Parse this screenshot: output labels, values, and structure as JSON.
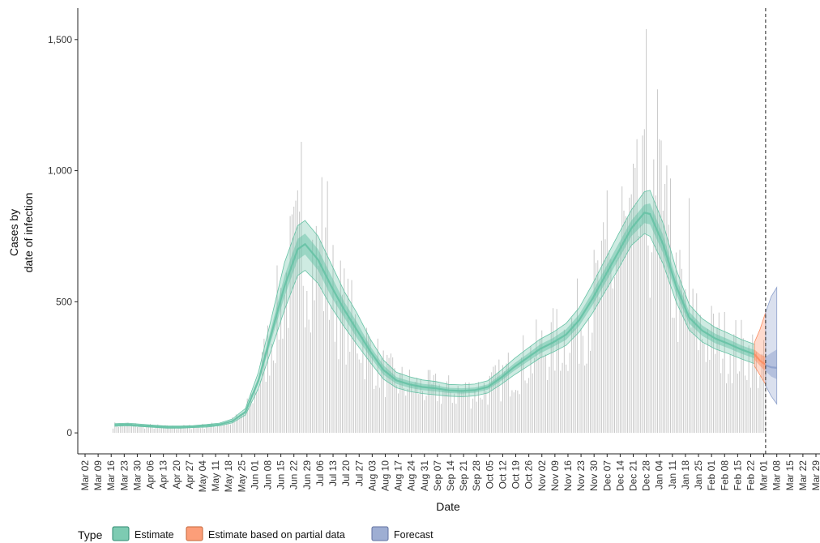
{
  "chart_data": {
    "type": "area",
    "xlabel": "Date",
    "ylabel_lines": [
      "Cases by",
      "date of infection"
    ],
    "x_range": [
      "2020-03-02",
      "2021-03-29"
    ],
    "ylim": [
      -80,
      1620
    ],
    "y_ticks": [
      0,
      500,
      1000,
      1500
    ],
    "y_tick_labels": [
      "0",
      "500",
      "1,000",
      "1,500"
    ],
    "x_tick_labels": [
      "Mar 02",
      "Mar 09",
      "Mar 16",
      "Mar 23",
      "Mar 30",
      "Apr 06",
      "Apr 13",
      "Apr 20",
      "Apr 27",
      "May 04",
      "May 11",
      "May 18",
      "May 25",
      "Jun 01",
      "Jun 08",
      "Jun 15",
      "Jun 22",
      "Jun 29",
      "Jul 06",
      "Jul 13",
      "Jul 20",
      "Jul 27",
      "Aug 03",
      "Aug 10",
      "Aug 17",
      "Aug 24",
      "Aug 31",
      "Sep 07",
      "Sep 14",
      "Sep 21",
      "Sep 28",
      "Oct 05",
      "Oct 12",
      "Oct 19",
      "Oct 26",
      "Nov 02",
      "Nov 09",
      "Nov 16",
      "Nov 23",
      "Nov 30",
      "Dec 07",
      "Dec 14",
      "Dec 21",
      "Dec 28",
      "Jan 04",
      "Jan 11",
      "Jan 18",
      "Jan 25",
      "Feb 01",
      "Feb 08",
      "Feb 15",
      "Feb 22",
      "Mar 01",
      "Mar 08",
      "Mar 15",
      "Mar 22",
      "Mar 29"
    ],
    "vline_date": "2021-03-02",
    "grid": false,
    "legend": {
      "title": "Type",
      "position": "bottom",
      "items": [
        {
          "label": "Estimate",
          "color": "#66c2a5"
        },
        {
          "label": "Estimate based on partial data",
          "color": "#fc8d62"
        },
        {
          "label": "Forecast",
          "color": "#8da0cb"
        }
      ]
    },
    "series": [
      {
        "name": "Estimate",
        "color": "#66c2a5",
        "dates": [
          "2020-03-18",
          "2020-03-25",
          "2020-04-01",
          "2020-04-08",
          "2020-04-15",
          "2020-04-22",
          "2020-04-29",
          "2020-05-06",
          "2020-05-13",
          "2020-05-20",
          "2020-05-27",
          "2020-06-03",
          "2020-06-10",
          "2020-06-17",
          "2020-06-24",
          "2020-06-28",
          "2020-07-05",
          "2020-07-12",
          "2020-07-19",
          "2020-07-26",
          "2020-08-02",
          "2020-08-09",
          "2020-08-16",
          "2020-08-23",
          "2020-08-30",
          "2020-09-06",
          "2020-09-13",
          "2020-09-20",
          "2020-09-27",
          "2020-10-04",
          "2020-10-11",
          "2020-10-18",
          "2020-10-25",
          "2020-11-01",
          "2020-11-08",
          "2020-11-15",
          "2020-11-22",
          "2020-11-29",
          "2020-12-06",
          "2020-12-13",
          "2020-12-20",
          "2020-12-27",
          "2020-12-30",
          "2021-01-06",
          "2021-01-13",
          "2021-01-20",
          "2021-01-27",
          "2021-02-03",
          "2021-02-10",
          "2021-02-17",
          "2021-02-24"
        ],
        "median": [
          30,
          32,
          28,
          25,
          22,
          22,
          24,
          27,
          32,
          45,
          80,
          200,
          380,
          560,
          700,
          720,
          660,
          560,
          470,
          390,
          310,
          240,
          200,
          185,
          175,
          170,
          162,
          160,
          163,
          175,
          210,
          250,
          285,
          320,
          345,
          375,
          430,
          510,
          600,
          690,
          780,
          840,
          835,
          720,
          560,
          440,
          390,
          360,
          340,
          318,
          300
        ],
        "lower50": [
          28,
          30,
          26,
          23,
          20,
          20,
          22,
          25,
          30,
          42,
          75,
          188,
          355,
          520,
          660,
          680,
          620,
          520,
          440,
          360,
          290,
          222,
          187,
          172,
          163,
          158,
          152,
          150,
          153,
          165,
          198,
          236,
          270,
          303,
          328,
          355,
          408,
          485,
          572,
          660,
          750,
          800,
          795,
          685,
          530,
          418,
          370,
          342,
          323,
          302,
          284
        ],
        "upper50": [
          32,
          34,
          30,
          27,
          24,
          24,
          26,
          29,
          34,
          48,
          85,
          212,
          405,
          600,
          740,
          760,
          700,
          600,
          500,
          420,
          330,
          258,
          213,
          198,
          187,
          182,
          172,
          170,
          173,
          185,
          222,
          264,
          300,
          337,
          362,
          395,
          452,
          535,
          628,
          720,
          810,
          870,
          875,
          755,
          590,
          462,
          410,
          378,
          357,
          334,
          316
        ],
        "lower90": [
          25,
          27,
          24,
          21,
          18,
          18,
          20,
          22,
          27,
          38,
          68,
          170,
          320,
          470,
          600,
          620,
          570,
          480,
          405,
          335,
          268,
          205,
          172,
          158,
          150,
          145,
          140,
          138,
          141,
          152,
          184,
          220,
          252,
          285,
          308,
          334,
          385,
          455,
          540,
          625,
          715,
          760,
          750,
          645,
          500,
          392,
          347,
          320,
          302,
          282,
          264
        ],
        "upper90": [
          35,
          37,
          33,
          29,
          26,
          26,
          28,
          32,
          37,
          53,
          93,
          232,
          440,
          650,
          790,
          810,
          750,
          645,
          540,
          455,
          357,
          278,
          231,
          214,
          202,
          196,
          185,
          183,
          186,
          199,
          238,
          282,
          320,
          357,
          384,
          418,
          477,
          566,
          662,
          757,
          850,
          920,
          925,
          800,
          625,
          490,
          436,
          402,
          380,
          356,
          338
        ]
      },
      {
        "name": "Estimate based on partial data",
        "color": "#fc8d62",
        "dates": [
          "2021-02-24",
          "2021-02-27",
          "2021-03-02"
        ],
        "median": [
          300,
          275,
          260
        ],
        "lower50": [
          280,
          255,
          235
        ],
        "upper50": [
          318,
          300,
          290
        ],
        "lower90": [
          255,
          220,
          185
        ],
        "upper90": [
          345,
          395,
          460
        ]
      },
      {
        "name": "Forecast",
        "color": "#8da0cb",
        "dates": [
          "2021-03-02",
          "2021-03-05",
          "2021-03-08"
        ],
        "median": [
          258,
          250,
          248
        ],
        "lower50": [
          235,
          215,
          205
        ],
        "upper50": [
          290,
          305,
          318
        ],
        "lower90": [
          180,
          140,
          110
        ],
        "upper90": [
          460,
          520,
          555
        ]
      }
    ],
    "bars": {
      "start_date": "2020-03-17",
      "peaks": [
        {
          "date": "2020-06-26",
          "value": 1110
        },
        {
          "date": "2020-07-07",
          "value": 975
        },
        {
          "date": "2020-07-10",
          "value": 960
        },
        {
          "date": "2020-12-28",
          "value": 1540
        },
        {
          "date": "2021-01-03",
          "value": 1310
        },
        {
          "date": "2021-01-04",
          "value": 1120
        },
        {
          "date": "2021-01-05",
          "value": 1115
        },
        {
          "date": "2021-01-08",
          "value": 1020
        },
        {
          "date": "2021-01-10",
          "value": 970
        },
        {
          "date": "2021-01-20",
          "value": 895
        },
        {
          "date": "2020-12-07",
          "value": 925
        },
        {
          "date": "2020-12-15",
          "value": 940
        },
        {
          "date": "2020-12-20",
          "value": 910
        }
      ]
    }
  }
}
